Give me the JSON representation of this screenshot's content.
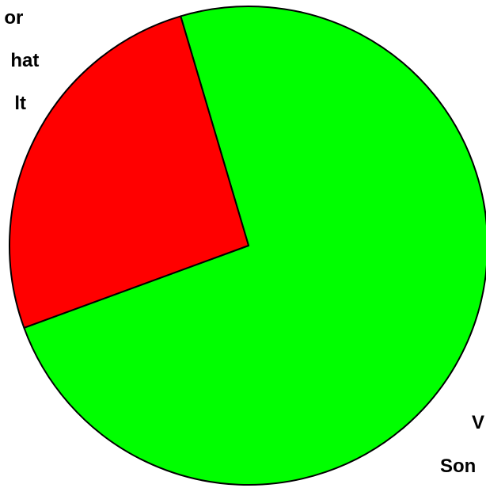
{
  "chart_data": {
    "type": "pie",
    "slices": [
      {
        "value": 74,
        "color": "#00ff00",
        "label_lines": [
          "V",
          "Son"
        ]
      },
      {
        "value": 26,
        "color": "#ff0000",
        "label_lines": [
          "or",
          "hat",
          "lt"
        ]
      }
    ],
    "legend": "none"
  }
}
